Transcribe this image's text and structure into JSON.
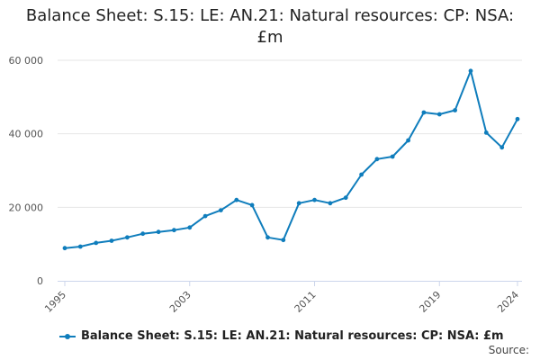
{
  "colors": {
    "series": "#0f7dbc",
    "grid": "#e6e6e6",
    "axis": "#ccd6eb"
  },
  "source_label": "Source:",
  "chart_data": {
    "type": "line",
    "title": "Balance Sheet: S.15: LE: AN.21: Natural resources: CP: NSA: £m",
    "xlabel": "",
    "ylabel": "",
    "x": [
      1995,
      1996,
      1997,
      1998,
      1999,
      2000,
      2001,
      2002,
      2003,
      2004,
      2005,
      2006,
      2007,
      2008,
      2009,
      2010,
      2011,
      2012,
      2013,
      2014,
      2015,
      2016,
      2017,
      2018,
      2019,
      2020,
      2021,
      2022,
      2023,
      2024
    ],
    "xlim": [
      1995,
      2024
    ],
    "ylim": [
      0,
      60000
    ],
    "x_ticks": [
      1995,
      2003,
      2011,
      2019,
      2024
    ],
    "x_tick_labels": [
      "1995",
      "2003",
      "2011",
      "2019",
      "2024"
    ],
    "y_ticks": [
      0,
      20000,
      40000,
      60000
    ],
    "y_tick_labels": [
      "0",
      "20 000",
      "40 000",
      "60 000"
    ],
    "grid": true,
    "legend_position": "bottom",
    "series": [
      {
        "name": "Balance Sheet: S.15: LE: AN.21: Natural resources: CP: NSA: £m",
        "values": [
          8900,
          9300,
          10300,
          10900,
          11800,
          12800,
          13300,
          13800,
          14500,
          17600,
          19200,
          22000,
          20600,
          11800,
          11100,
          21100,
          22000,
          21100,
          22600,
          28900,
          33100,
          33800,
          38200,
          45800,
          45300,
          46400,
          57100,
          40300,
          36300,
          44000
        ]
      }
    ]
  }
}
